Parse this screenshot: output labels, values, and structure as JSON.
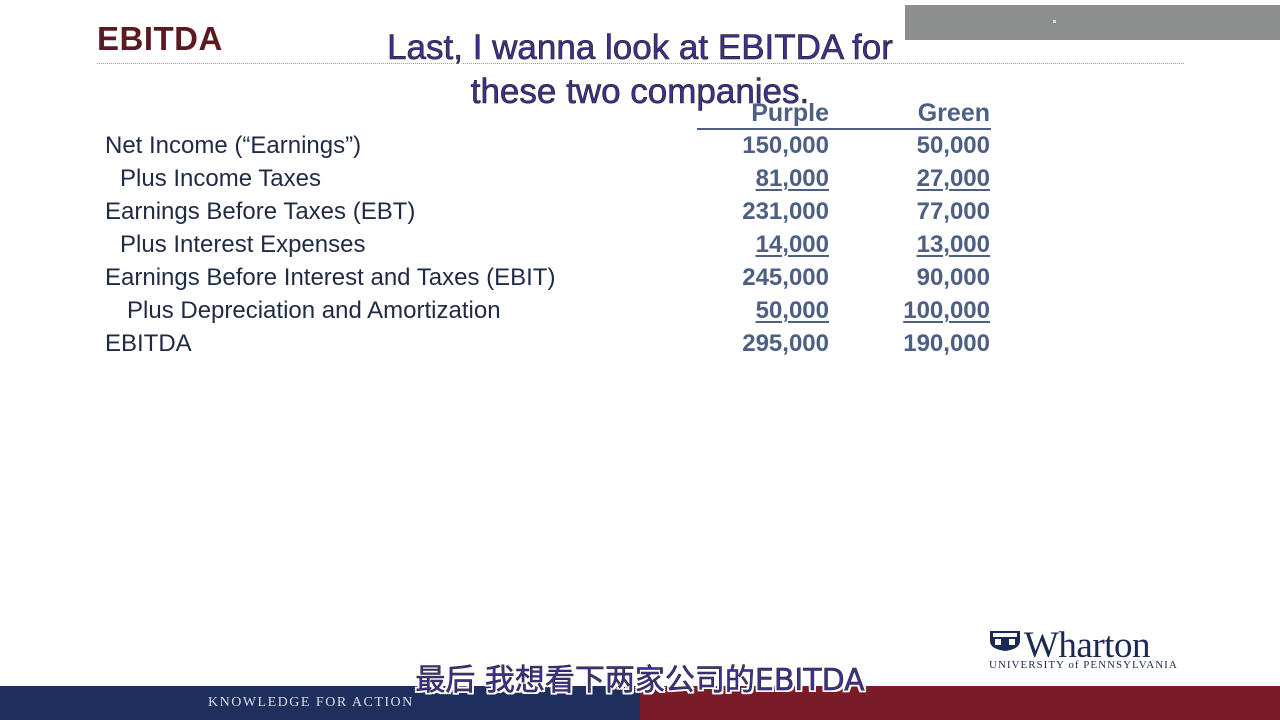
{
  "slide": {
    "title": "EBITDA",
    "caption_en": "Last, I wanna look at EBITDA for these two companies.",
    "caption_zh": "最后 我想看下两家公司的EBITDA",
    "footer_tagline": "KNOWLEDGE FOR ACTION"
  },
  "table": {
    "columns": [
      "Purple",
      "Green"
    ],
    "rows": [
      {
        "label": "Net Income (“Earnings”)",
        "purple": "150,000",
        "green": "50,000"
      },
      {
        "label": "Plus Income Taxes",
        "purple": "81,000",
        "green": "27,000"
      },
      {
        "label": "Earnings Before Taxes (EBT)",
        "purple": "231,000",
        "green": "77,000"
      },
      {
        "label": "Plus Interest Expenses",
        "purple": "14,000",
        "green": "13,000"
      },
      {
        "label": "Earnings Before Interest and Taxes (EBIT)",
        "purple": "245,000",
        "green": "90,000"
      },
      {
        "label": "Plus Depreciation and Amortization",
        "purple": "50,000",
        "green": "100,000"
      },
      {
        "label": "EBITDA",
        "purple": "295,000",
        "green": "190,000"
      }
    ]
  },
  "logo": {
    "name": "Wharton",
    "subtitle": "UNIVERSITY of PENNSYLVANIA"
  },
  "colors": {
    "title": "#5a1a22",
    "values": "#4d5f83",
    "labels": "#1f2a44",
    "footer_navy": "#1f2f5d",
    "footer_maroon": "#7a1b2a"
  }
}
